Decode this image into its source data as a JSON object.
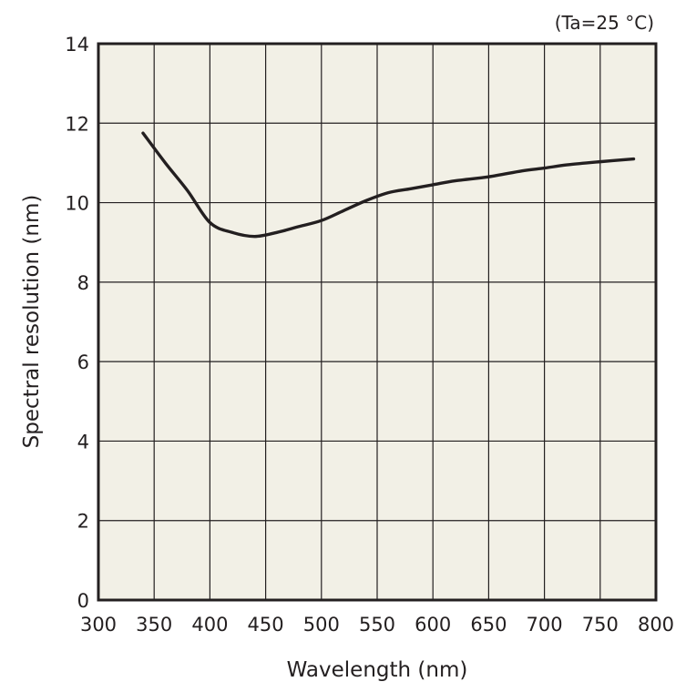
{
  "chart_data": {
    "type": "line",
    "title": "",
    "annotation": "(Ta=25 °C)",
    "xlabel": "Wavelength (nm)",
    "ylabel": "Spectral resolution (nm)",
    "xlim": [
      300,
      800
    ],
    "ylim": [
      0,
      14
    ],
    "x_ticks": [
      300,
      350,
      400,
      450,
      500,
      550,
      600,
      650,
      700,
      750,
      800
    ],
    "y_ticks": [
      0,
      2,
      4,
      6,
      8,
      10,
      12,
      14
    ],
    "grid": true,
    "legend": "none",
    "plot_background": "#f2f0e6",
    "line_color": "#231f20",
    "grid_color": "#231f20",
    "series": [
      {
        "x": [
          340,
          360,
          380,
          400,
          420,
          440,
          460,
          480,
          500,
          520,
          540,
          560,
          580,
          600,
          620,
          650,
          680,
          700,
          720,
          750,
          780
        ],
        "y": [
          11.75,
          11.0,
          10.3,
          9.5,
          9.25,
          9.15,
          9.25,
          9.4,
          9.55,
          9.8,
          10.05,
          10.25,
          10.35,
          10.45,
          10.55,
          10.65,
          10.8,
          10.87,
          10.95,
          11.03,
          11.1
        ]
      }
    ]
  }
}
